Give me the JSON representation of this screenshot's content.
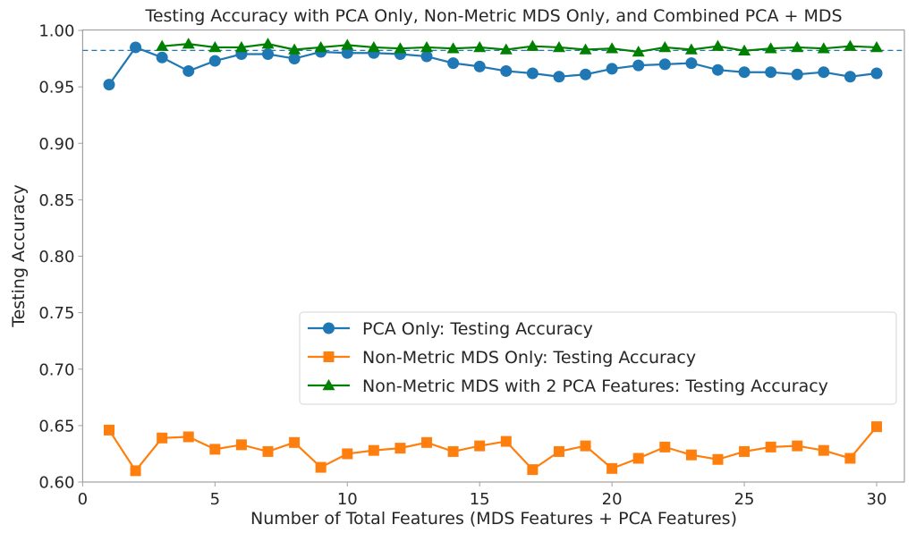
{
  "chart_data": {
    "type": "line",
    "title": "Testing Accuracy with PCA Only, Non-Metric MDS Only, and Combined PCA + MDS",
    "xlabel": "Number of Total Features (MDS Features + PCA Features)",
    "ylabel": "Testing Accuracy",
    "xlim": [
      0,
      31
    ],
    "ylim": [
      0.6,
      1.0
    ],
    "xticks": [
      0,
      5,
      10,
      15,
      20,
      25,
      30
    ],
    "xtick_labels": [
      "0",
      "5",
      "10",
      "15",
      "20",
      "25",
      "30"
    ],
    "yticks": [
      0.6,
      0.65,
      0.7,
      0.75,
      0.8,
      0.85,
      0.9,
      0.95,
      1.0
    ],
    "ytick_labels": [
      "0.60",
      "0.65",
      "0.70",
      "0.75",
      "0.80",
      "0.85",
      "0.90",
      "0.95",
      "1.00"
    ],
    "grid": false,
    "legend_position": "center-right",
    "reference_line": {
      "y": 0.9823,
      "style": "dashed",
      "color": "#1f77b4"
    },
    "series": [
      {
        "name": "PCA Only: Testing Accuracy",
        "color": "#1f77b4",
        "marker": "circle",
        "x": [
          1,
          2,
          3,
          4,
          5,
          6,
          7,
          8,
          9,
          10,
          11,
          12,
          13,
          14,
          15,
          16,
          17,
          18,
          19,
          20,
          21,
          22,
          23,
          24,
          25,
          26,
          27,
          28,
          29,
          30
        ],
        "values": [
          0.952,
          0.985,
          0.976,
          0.964,
          0.973,
          0.979,
          0.979,
          0.975,
          0.981,
          0.98,
          0.98,
          0.979,
          0.977,
          0.971,
          0.968,
          0.964,
          0.962,
          0.959,
          0.961,
          0.966,
          0.969,
          0.97,
          0.971,
          0.965,
          0.963,
          0.963,
          0.961,
          0.963,
          0.959,
          0.962
        ]
      },
      {
        "name": "Non-Metric MDS Only: Testing Accuracy",
        "color": "#ff7f0e",
        "marker": "square",
        "x": [
          1,
          2,
          3,
          4,
          5,
          6,
          7,
          8,
          9,
          10,
          11,
          12,
          13,
          14,
          15,
          16,
          17,
          18,
          19,
          20,
          21,
          22,
          23,
          24,
          25,
          26,
          27,
          28,
          29,
          30
        ],
        "values": [
          0.646,
          0.61,
          0.639,
          0.64,
          0.629,
          0.633,
          0.627,
          0.635,
          0.613,
          0.625,
          0.628,
          0.63,
          0.635,
          0.627,
          0.632,
          0.636,
          0.611,
          0.627,
          0.632,
          0.612,
          0.621,
          0.631,
          0.624,
          0.62,
          0.627,
          0.631,
          0.632,
          0.628,
          0.621,
          0.649
        ]
      },
      {
        "name": "Non-Metric MDS with 2 PCA Features: Testing Accuracy",
        "color": "#008000",
        "marker": "triangle",
        "x": [
          3,
          4,
          5,
          6,
          7,
          8,
          9,
          10,
          11,
          12,
          13,
          14,
          15,
          16,
          17,
          18,
          19,
          20,
          21,
          22,
          23,
          24,
          25,
          26,
          27,
          28,
          29,
          30
        ],
        "values": [
          0.986,
          0.988,
          0.985,
          0.985,
          0.988,
          0.983,
          0.985,
          0.987,
          0.985,
          0.984,
          0.985,
          0.984,
          0.985,
          0.983,
          0.986,
          0.985,
          0.983,
          0.984,
          0.981,
          0.985,
          0.983,
          0.986,
          0.982,
          0.984,
          0.985,
          0.984,
          0.986,
          0.985
        ]
      }
    ]
  }
}
